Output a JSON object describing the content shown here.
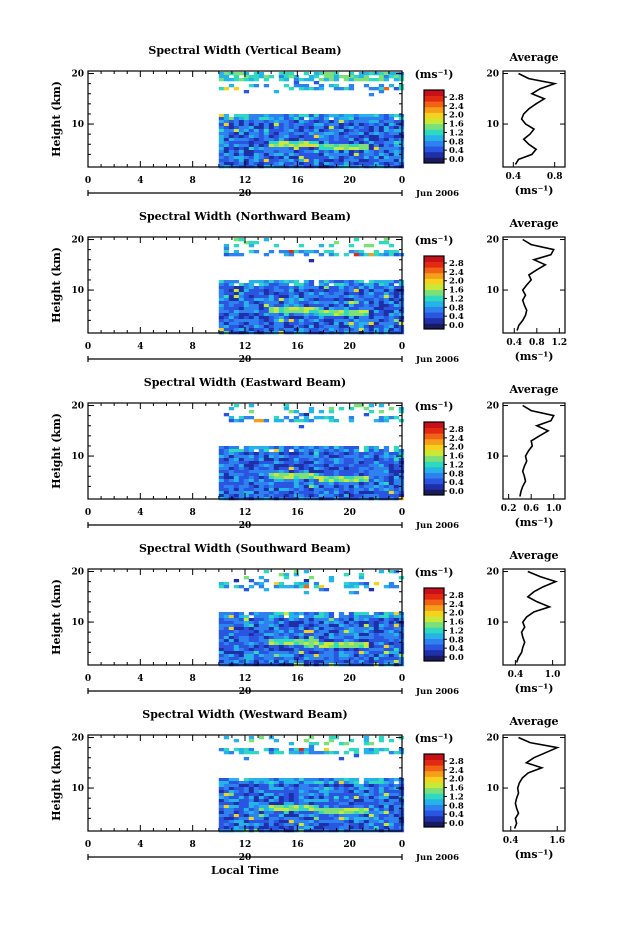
{
  "chart_data": [
    {
      "type": "heatmap",
      "title": "Spectral Width (Vertical Beam)",
      "ylabel": "Height (km)",
      "xlabel": "",
      "x_ticks": [
        "0",
        "4",
        "8",
        "12",
        "16",
        "20",
        "0"
      ],
      "y_ticks": [
        "20",
        "10"
      ],
      "xlim": [
        0,
        24
      ],
      "ylim": [
        1.5,
        20.5
      ],
      "data_start_hour": 10,
      "date_marker": "20",
      "date_label": "Jun 2006",
      "colorbar": {
        "unit": "(ms⁻¹)",
        "ticks": [
          "2.8",
          "2.4",
          "2.0",
          "1.6",
          "1.2",
          "0.8",
          "0.4",
          "0.0"
        ]
      },
      "average": {
        "title": "Average",
        "xlabel": "(ms⁻¹)",
        "x_ticks": [
          "0.4",
          "0.8"
        ],
        "y_ticks": [
          "20",
          "10"
        ],
        "xlim": [
          0.3,
          0.9
        ],
        "heights": [
          2,
          3,
          4,
          5,
          6,
          7,
          8,
          9,
          10,
          11,
          12,
          13,
          14,
          15,
          16,
          17,
          18,
          19,
          20
        ],
        "values": [
          0.42,
          0.45,
          0.58,
          0.62,
          0.55,
          0.5,
          0.56,
          0.6,
          0.52,
          0.48,
          0.5,
          0.55,
          0.62,
          0.7,
          0.58,
          0.66,
          0.8,
          0.55,
          0.45
        ]
      }
    },
    {
      "type": "heatmap",
      "title": "Spectral Width (Northward Beam)",
      "ylabel": "Height (km)",
      "xlabel": "",
      "x_ticks": [
        "0",
        "4",
        "8",
        "12",
        "16",
        "20",
        "0"
      ],
      "y_ticks": [
        "20",
        "10"
      ],
      "xlim": [
        0,
        24
      ],
      "ylim": [
        1.5,
        20.5
      ],
      "data_start_hour": 10,
      "date_marker": "20",
      "date_label": "Jun 2006",
      "colorbar": {
        "unit": "(ms⁻¹)",
        "ticks": [
          "2.8",
          "2.4",
          "2.0",
          "1.6",
          "1.2",
          "0.8",
          "0.4",
          "0.0"
        ]
      },
      "average": {
        "title": "Average",
        "xlabel": "(ms⁻¹)",
        "x_ticks": [
          "0.4",
          "0.8",
          "1.2"
        ],
        "y_ticks": [
          "20",
          "10"
        ],
        "xlim": [
          0.2,
          1.3
        ],
        "heights": [
          2,
          3,
          4,
          5,
          6,
          7,
          8,
          9,
          10,
          11,
          12,
          13,
          14,
          15,
          16,
          17,
          18,
          19,
          20
        ],
        "values": [
          0.45,
          0.48,
          0.55,
          0.6,
          0.62,
          0.58,
          0.55,
          0.6,
          0.55,
          0.62,
          0.7,
          0.66,
          0.8,
          0.95,
          0.75,
          1.05,
          1.1,
          0.7,
          0.55
        ]
      }
    },
    {
      "type": "heatmap",
      "title": "Spectral Width (Eastward Beam)",
      "ylabel": "Height (km)",
      "xlabel": "",
      "x_ticks": [
        "0",
        "4",
        "8",
        "12",
        "16",
        "20",
        "0"
      ],
      "y_ticks": [
        "20",
        "10"
      ],
      "xlim": [
        0,
        24
      ],
      "ylim": [
        1.5,
        20.5
      ],
      "data_start_hour": 10,
      "date_marker": "20",
      "date_label": "Jun 2006",
      "colorbar": {
        "unit": "(ms⁻¹)",
        "ticks": [
          "2.8",
          "2.4",
          "2.0",
          "1.6",
          "1.2",
          "0.8",
          "0.4",
          "0.0"
        ]
      },
      "average": {
        "title": "Average",
        "xlabel": "(ms⁻¹)",
        "x_ticks": [
          "0.2",
          "0.6",
          "1.0"
        ],
        "y_ticks": [
          "20",
          "10"
        ],
        "xlim": [
          0.1,
          1.2
        ],
        "heights": [
          2,
          3,
          4,
          5,
          6,
          7,
          8,
          9,
          10,
          11,
          12,
          13,
          14,
          15,
          16,
          17,
          18,
          19,
          20
        ],
        "values": [
          0.4,
          0.42,
          0.45,
          0.5,
          0.48,
          0.45,
          0.48,
          0.52,
          0.5,
          0.55,
          0.62,
          0.6,
          0.75,
          0.9,
          0.7,
          0.95,
          1.0,
          0.6,
          0.45
        ]
      }
    },
    {
      "type": "heatmap",
      "title": "Spectral Width (Southward Beam)",
      "ylabel": "Height (km)",
      "xlabel": "",
      "x_ticks": [
        "0",
        "4",
        "8",
        "12",
        "16",
        "20",
        "0"
      ],
      "y_ticks": [
        "20",
        "10"
      ],
      "xlim": [
        0,
        24
      ],
      "ylim": [
        1.5,
        20.5
      ],
      "data_start_hour": 10,
      "date_marker": "20",
      "date_label": "Jun 2006",
      "colorbar": {
        "unit": "(ms⁻¹)",
        "ticks": [
          "2.8",
          "2.4",
          "2.0",
          "1.6",
          "1.2",
          "0.8",
          "0.4",
          "0.0"
        ]
      },
      "average": {
        "title": "Average",
        "xlabel": "(ms⁻¹)",
        "x_ticks": [
          "0.4",
          "1.0"
        ],
        "y_ticks": [
          "20",
          "10"
        ],
        "xlim": [
          0.2,
          1.2
        ],
        "heights": [
          2,
          3,
          4,
          5,
          6,
          7,
          8,
          9,
          10,
          11,
          12,
          13,
          14,
          15,
          16,
          17,
          18,
          19,
          20
        ],
        "values": [
          0.42,
          0.45,
          0.5,
          0.52,
          0.55,
          0.52,
          0.5,
          0.55,
          0.52,
          0.58,
          0.7,
          0.95,
          0.75,
          0.6,
          0.7,
          0.85,
          1.05,
          0.8,
          0.6
        ]
      }
    },
    {
      "type": "heatmap",
      "title": "Spectral Width (Westward Beam)",
      "ylabel": "Height (km)",
      "xlabel": "Local Time",
      "x_ticks": [
        "0",
        "4",
        "8",
        "12",
        "16",
        "20",
        "0"
      ],
      "y_ticks": [
        "20",
        "10"
      ],
      "xlim": [
        0,
        24
      ],
      "ylim": [
        1.5,
        20.5
      ],
      "data_start_hour": 10,
      "date_marker": "20",
      "date_label": "Jun 2006",
      "colorbar": {
        "unit": "(ms⁻¹)",
        "ticks": [
          "2.8",
          "2.4",
          "2.0",
          "1.6",
          "1.2",
          "0.8",
          "0.4",
          "0.0"
        ]
      },
      "average": {
        "title": "Average",
        "xlabel": "(ms⁻¹)",
        "x_ticks": [
          "0.4",
          "1.6"
        ],
        "y_ticks": [
          "20",
          "10"
        ],
        "xlim": [
          0.2,
          1.8
        ],
        "heights": [
          2,
          3,
          4,
          5,
          6,
          7,
          8,
          9,
          10,
          11,
          12,
          13,
          14,
          15,
          16,
          17,
          18,
          19,
          20
        ],
        "values": [
          0.5,
          0.55,
          0.52,
          0.6,
          0.55,
          0.52,
          0.55,
          0.6,
          0.58,
          0.62,
          0.7,
          0.85,
          1.2,
          0.8,
          1.0,
          1.3,
          1.6,
          0.9,
          0.6
        ]
      }
    }
  ],
  "colors": {
    "background": "#ffffff",
    "colormap": [
      "#1a1a5e",
      "#1f2fa8",
      "#2a55e0",
      "#2d82f0",
      "#26b3e8",
      "#2fd8c0",
      "#7be07a",
      "#c8e83a",
      "#f5d21e",
      "#f59e1a",
      "#f06214",
      "#e22a12",
      "#c8101a"
    ]
  }
}
